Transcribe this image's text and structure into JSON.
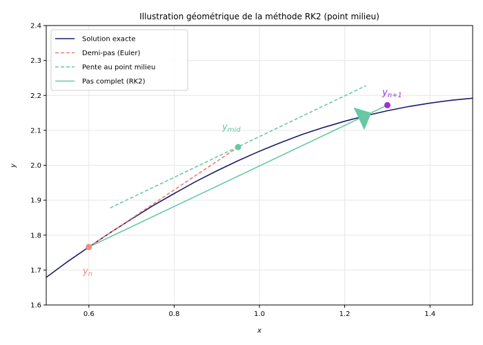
{
  "chart_data": {
    "type": "line",
    "title": "Illustration géométrique de la méthode RK2 (point milieu)",
    "xlabel": "x",
    "ylabel": "y",
    "xlim": [
      0.5,
      1.5
    ],
    "ylim": [
      1.6,
      2.4
    ],
    "xticks": [
      "0.6",
      "0.8",
      "1.0",
      "1.2",
      "1.4"
    ],
    "yticks": [
      "1.6",
      "1.7",
      "1.8",
      "1.9",
      "2.0",
      "2.1",
      "2.2",
      "2.3",
      "2.4"
    ],
    "grid": true,
    "legend_position": "upper-left",
    "exact_curve": {
      "x": [
        0.5,
        0.55,
        0.6,
        0.65,
        0.7,
        0.75,
        0.8,
        0.85,
        0.9,
        0.95,
        1.0,
        1.05,
        1.1,
        1.15,
        1.2,
        1.25,
        1.3,
        1.35,
        1.4,
        1.45,
        1.5
      ],
      "y": [
        1.679,
        1.724,
        1.766,
        1.807,
        1.846,
        1.884,
        1.919,
        1.953,
        1.984,
        2.013,
        2.04,
        2.065,
        2.088,
        2.108,
        2.126,
        2.142,
        2.156,
        2.168,
        2.178,
        2.186,
        2.192
      ]
    },
    "series": [
      {
        "name": "Solution exacte",
        "color": "#1a1a6e",
        "dash": "solid"
      },
      {
        "name": "Demi-pas (Euler)",
        "color": "#f07b6e",
        "dash": "dashed",
        "x": [
          0.6,
          0.95
        ],
        "y": [
          1.766,
          2.052
        ]
      },
      {
        "name": "Pente au point milieu",
        "color": "#66c9a3",
        "dash": "dashed",
        "x": [
          0.65,
          1.25
        ],
        "y": [
          1.878,
          2.228
        ]
      },
      {
        "name": "Pas complet (RK2)",
        "color": "#66c9a3",
        "dash": "solid",
        "x": [
          0.6,
          1.3
        ],
        "y": [
          1.766,
          2.172
        ]
      }
    ],
    "points": [
      {
        "label": "y_n",
        "x": 0.6,
        "y": 1.766,
        "color": "#f28a7a"
      },
      {
        "label": "y_mid",
        "x": 0.95,
        "y": 2.052,
        "color": "#66c9a3"
      },
      {
        "label": "y_n+1",
        "x": 1.3,
        "y": 2.172,
        "color": "#9b30d9"
      }
    ],
    "arrow": {
      "x": 1.245,
      "y": 2.14,
      "color": "#66c9a3"
    }
  }
}
